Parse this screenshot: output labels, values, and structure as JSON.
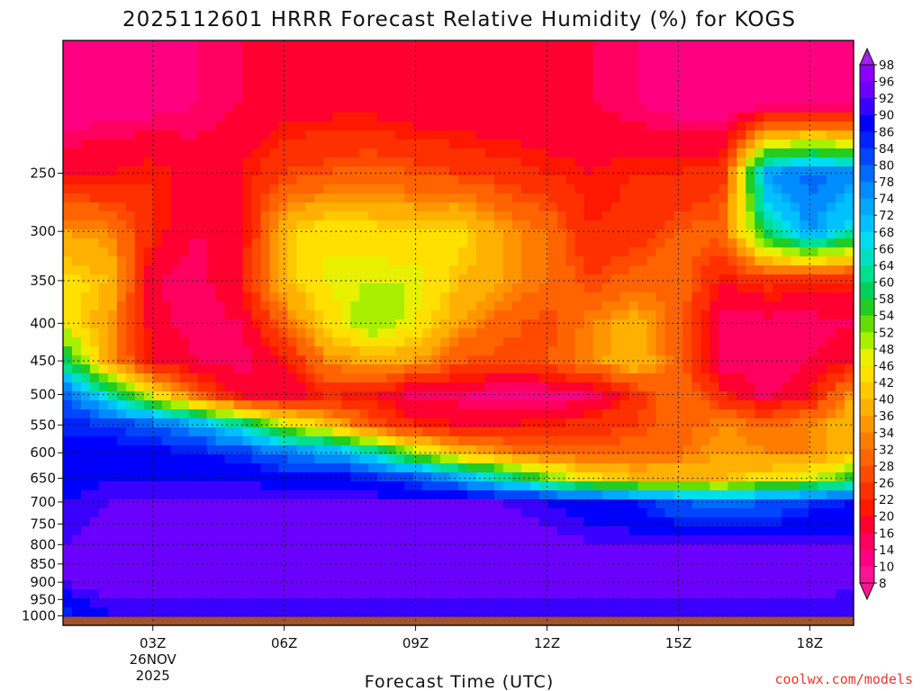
{
  "chart_data": {
    "type": "heatmap",
    "title": "2025112601 HRRR Forecast Relative Humidity (%) for KOGS",
    "xlabel": "Forecast Time (UTC)",
    "ylabel": "",
    "credit": "coolwx.com/models",
    "x_ticks": [
      "03Z",
      "06Z",
      "09Z",
      "12Z",
      "15Z",
      "18Z"
    ],
    "x_tick_hours": [
      3,
      6,
      9,
      12,
      15,
      18
    ],
    "x_range_hours": [
      0.95,
      19
    ],
    "date_label": [
      "26NOV",
      "2025"
    ],
    "y_ticks": [
      250,
      300,
      350,
      400,
      450,
      500,
      550,
      600,
      650,
      700,
      750,
      800,
      850,
      900,
      950,
      1000
    ],
    "y_range_hPa": [
      1030,
      165
    ],
    "y_scale": "log-pressure (inverted)",
    "grid": true,
    "ground_level_hPa": 1003,
    "ground_color": "#a0522d",
    "colorbar_labels": [
      98,
      96,
      92,
      90,
      86,
      84,
      80,
      78,
      74,
      72,
      68,
      66,
      64,
      60,
      58,
      54,
      52,
      48,
      46,
      42,
      40,
      36,
      34,
      32,
      28,
      26,
      22,
      20,
      16,
      14,
      10,
      8
    ],
    "colorbar_colors": [
      "#a020f0",
      "#8b00ff",
      "#6a00ff",
      "#3a00ff",
      "#0000ff",
      "#0022ff",
      "#0046ff",
      "#006aff",
      "#008cff",
      "#00a8ff",
      "#00c0ff",
      "#00dcf0",
      "#00e0c0",
      "#00e090",
      "#00d05a",
      "#22cc22",
      "#66dd00",
      "#aaee00",
      "#e8f000",
      "#ffe000",
      "#ffc800",
      "#ffb000",
      "#ff9600",
      "#ff7c00",
      "#ff6400",
      "#ff4a00",
      "#ff3000",
      "#ff1800",
      "#ff0030",
      "#ff0060",
      "#ff0080",
      "#ff1493"
    ],
    "rows_hPa": [
      200,
      250,
      300,
      350,
      400,
      450,
      500,
      550,
      600,
      650,
      700,
      800,
      900,
      1000
    ],
    "cols_hours": [
      1,
      2,
      3,
      4,
      5,
      6,
      7,
      8,
      9,
      10,
      11,
      12,
      13,
      14,
      15,
      16,
      17,
      18,
      19
    ],
    "values_rh_percent": [
      [
        10,
        12,
        12,
        14,
        16,
        18,
        18,
        18,
        16,
        16,
        16,
        16,
        16,
        14,
        12,
        10,
        10,
        10,
        10
      ],
      [
        20,
        20,
        22,
        18,
        20,
        26,
        28,
        30,
        28,
        26,
        24,
        22,
        20,
        22,
        22,
        24,
        74,
        80,
        76
      ],
      [
        36,
        34,
        22,
        16,
        18,
        40,
        46,
        44,
        42,
        44,
        36,
        32,
        22,
        24,
        28,
        30,
        60,
        74,
        64
      ],
      [
        44,
        40,
        16,
        14,
        20,
        40,
        46,
        48,
        48,
        40,
        36,
        32,
        26,
        30,
        32,
        20,
        24,
        22,
        22
      ],
      [
        46,
        36,
        18,
        14,
        16,
        30,
        44,
        52,
        46,
        36,
        30,
        26,
        34,
        38,
        30,
        14,
        14,
        14,
        16
      ],
      [
        60,
        36,
        20,
        16,
        14,
        20,
        34,
        38,
        36,
        28,
        26,
        28,
        34,
        40,
        30,
        14,
        14,
        16,
        20
      ],
      [
        80,
        64,
        46,
        30,
        18,
        16,
        22,
        20,
        14,
        14,
        12,
        12,
        14,
        24,
        32,
        22,
        14,
        20,
        36
      ],
      [
        86,
        84,
        80,
        74,
        64,
        50,
        40,
        28,
        22,
        20,
        20,
        22,
        24,
        26,
        30,
        34,
        32,
        34,
        40
      ],
      [
        86,
        88,
        88,
        86,
        84,
        78,
        74,
        66,
        50,
        40,
        34,
        30,
        30,
        30,
        32,
        36,
        34,
        34,
        40
      ],
      [
        88,
        90,
        90,
        90,
        90,
        88,
        88,
        86,
        82,
        74,
        64,
        54,
        44,
        40,
        40,
        40,
        44,
        48,
        56
      ],
      [
        90,
        92,
        92,
        92,
        92,
        92,
        92,
        92,
        92,
        92,
        92,
        90,
        88,
        86,
        80,
        78,
        80,
        84,
        86
      ],
      [
        92,
        94,
        94,
        94,
        94,
        94,
        94,
        94,
        94,
        94,
        94,
        94,
        92,
        92,
        92,
        92,
        92,
        92,
        92
      ],
      [
        92,
        94,
        94,
        94,
        94,
        94,
        94,
        94,
        94,
        94,
        94,
        94,
        94,
        94,
        94,
        94,
        94,
        94,
        92
      ],
      [
        84,
        90,
        90,
        90,
        90,
        90,
        90,
        90,
        90,
        90,
        90,
        90,
        90,
        90,
        90,
        90,
        90,
        90,
        90
      ]
    ]
  }
}
